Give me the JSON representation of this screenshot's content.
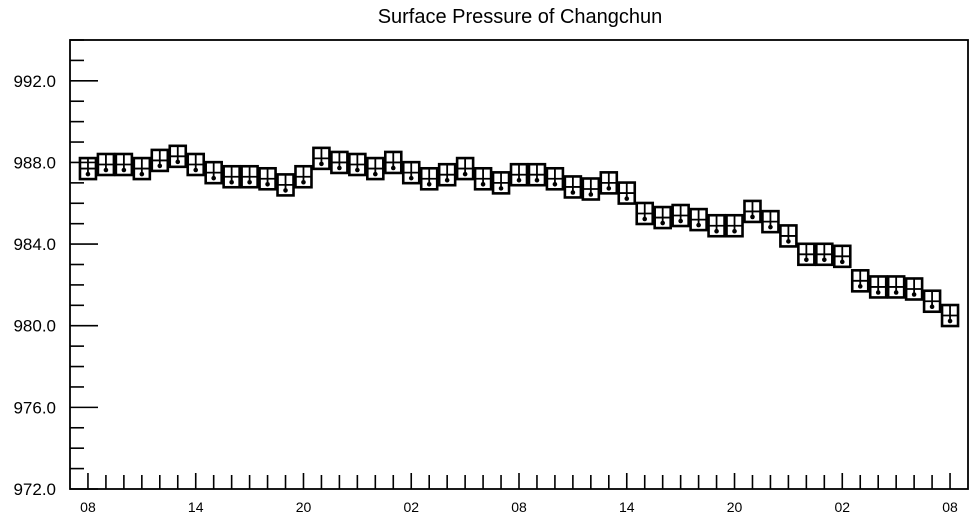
{
  "chart_data": {
    "type": "scatter",
    "title": "Surface Pressure of Changchun",
    "xlabel": "",
    "ylabel": "",
    "x": [
      8,
      9,
      10,
      11,
      12,
      13,
      14,
      15,
      16,
      17,
      18,
      19,
      20,
      21,
      22,
      23,
      0,
      1,
      2,
      3,
      4,
      5,
      6,
      7,
      8,
      9,
      10,
      11,
      12,
      13,
      14,
      15,
      16,
      17,
      18,
      19,
      20,
      21,
      22,
      23,
      0,
      1,
      2,
      3,
      4,
      5,
      6,
      7,
      8
    ],
    "values": [
      987.7,
      987.9,
      987.9,
      987.7,
      988.1,
      988.3,
      987.9,
      987.5,
      987.3,
      987.3,
      987.2,
      986.9,
      987.3,
      988.2,
      988.0,
      987.9,
      987.7,
      988.0,
      987.5,
      987.2,
      987.4,
      987.7,
      987.2,
      987.0,
      987.4,
      987.4,
      987.2,
      986.8,
      986.7,
      987.0,
      986.5,
      985.5,
      985.3,
      985.4,
      985.2,
      984.9,
      984.9,
      985.6,
      985.1,
      984.4,
      983.5,
      983.5,
      983.4,
      982.2,
      981.9,
      981.9,
      981.8,
      981.2,
      980.5
    ],
    "ylim": [
      972,
      994
    ],
    "yticks": [
      972,
      976,
      980,
      984,
      988,
      992
    ],
    "ytick_labels": [
      "972.0",
      "976.0",
      "980.0",
      "984.0",
      "988.0",
      "992.0"
    ],
    "xtick_labels": [
      "08",
      "14",
      "20",
      "02",
      "08",
      "14",
      "20",
      "02",
      "08"
    ],
    "grid": false,
    "legend": "none"
  },
  "colors": {
    "marker": "#000000",
    "axis": "#000000",
    "background": "#ffffff"
  }
}
